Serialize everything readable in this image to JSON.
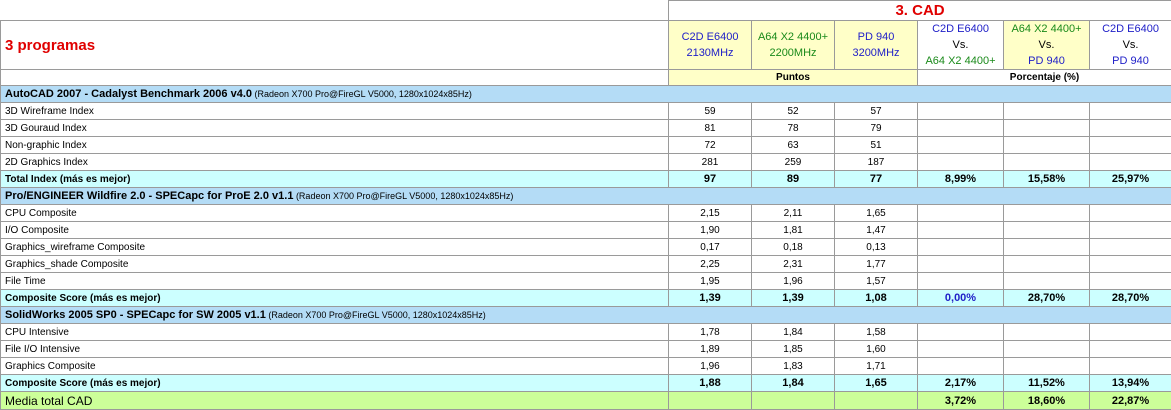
{
  "title": "3. CAD",
  "programs_label": "3 programas",
  "cpus": [
    {
      "line1": "C2D E6400",
      "line2": "2130MHz"
    },
    {
      "line1": "A64 X2 4400+",
      "line2": "2200MHz"
    },
    {
      "line1": "PD 940",
      "line2": "3200MHz"
    }
  ],
  "comparisons": [
    {
      "line1": "C2D E6400",
      "line2": "Vs.",
      "line3": "A64 X2 4400+"
    },
    {
      "line1": "A64 X2 4400+",
      "line2": "Vs.",
      "line3": "PD 940"
    },
    {
      "line1": "C2D E6400",
      "line2": "Vs.",
      "line3": "PD 940"
    }
  ],
  "units": {
    "points": "Puntos",
    "percent": "Porcentaje (%)"
  },
  "sections": [
    {
      "title": "AutoCAD 2007 - Cadalyst Benchmark 2006 v4.0",
      "note": " (Radeon X700 Pro@FireGL V5000, 1280x1024x85Hz)",
      "rows": [
        {
          "label": "3D Wireframe Index",
          "v": [
            "59",
            "52",
            "57"
          ]
        },
        {
          "label": "3D Gouraud Index",
          "v": [
            "81",
            "78",
            "79"
          ]
        },
        {
          "label": "Non-graphic Index",
          "v": [
            "72",
            "63",
            "51"
          ]
        },
        {
          "label": "2D Graphics Index",
          "v": [
            "281",
            "259",
            "187"
          ]
        }
      ],
      "total": {
        "label": "Total Index (más es mejor)",
        "v": [
          "97",
          "89",
          "77"
        ],
        "p": [
          "8,99%",
          "15,58%",
          "25,97%"
        ]
      }
    },
    {
      "title": "Pro/ENGINEER Wildfire 2.0 - SPECapc for ProE 2.0 v1.1",
      "note": " (Radeon X700 Pro@FireGL V5000, 1280x1024x85Hz)",
      "rows": [
        {
          "label": "CPU Composite",
          "v": [
            "2,15",
            "2,11",
            "1,65"
          ]
        },
        {
          "label": "I/O Composite",
          "v": [
            "1,90",
            "1,81",
            "1,47"
          ]
        },
        {
          "label": "Graphics_wireframe Composite",
          "v": [
            "0,17",
            "0,18",
            "0,13"
          ]
        },
        {
          "label": "Graphics_shade Composite",
          "v": [
            "2,25",
            "2,31",
            "1,77"
          ]
        },
        {
          "label": "File Time",
          "v": [
            "1,95",
            "1,96",
            "1,57"
          ]
        }
      ],
      "total": {
        "label": "Composite Score (más es mejor)",
        "v": [
          "1,39",
          "1,39",
          "1,08"
        ],
        "p": [
          "0,00%",
          "28,70%",
          "28,70%"
        ]
      }
    },
    {
      "title": "SolidWorks 2005 SP0 - SPECapc for SW 2005 v1.1",
      "note": " (Radeon X700 Pro@FireGL V5000, 1280x1024x85Hz)",
      "rows": [
        {
          "label": "CPU Intensive",
          "v": [
            "1,78",
            "1,84",
            "1,58"
          ]
        },
        {
          "label": "File I/O Intensive",
          "v": [
            "1,89",
            "1,85",
            "1,60"
          ]
        },
        {
          "label": "Graphics Composite",
          "v": [
            "1,96",
            "1,83",
            "1,71"
          ]
        }
      ],
      "total": {
        "label": "Composite Score (más es mejor)",
        "v": [
          "1,88",
          "1,84",
          "1,65"
        ],
        "p": [
          "2,17%",
          "11,52%",
          "13,94%"
        ]
      }
    }
  ],
  "final": {
    "label": "Media total CAD",
    "p": [
      "3,72%",
      "18,60%",
      "22,87%"
    ]
  }
}
